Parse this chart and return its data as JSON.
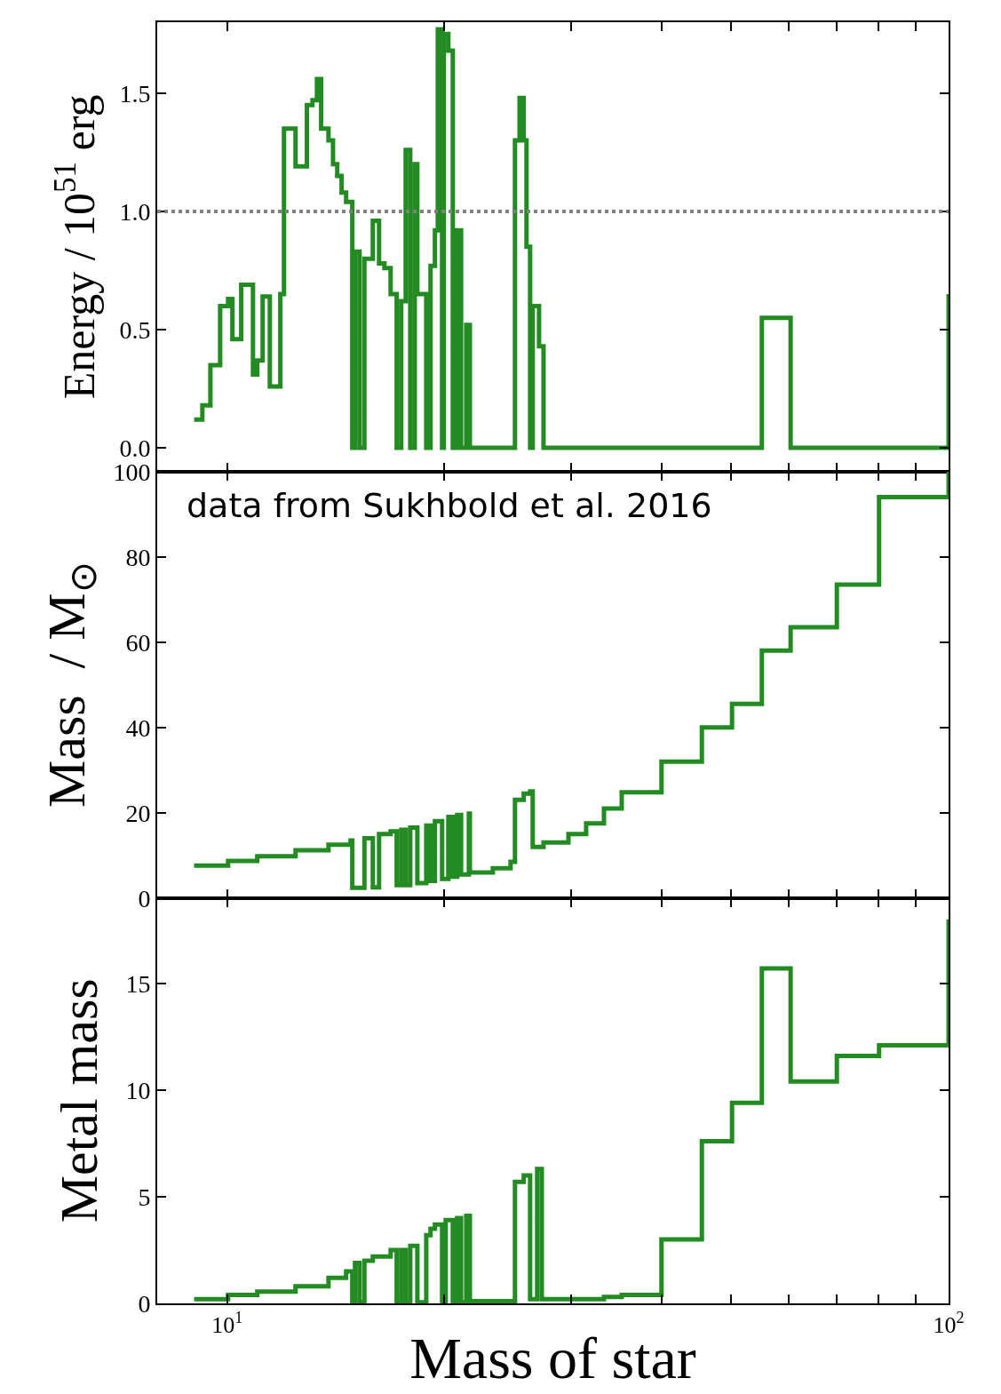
{
  "chart_data": [
    {
      "type": "step",
      "ylabel": "Energy / 10$^{51}$ erg",
      "log": "x",
      "xlim": [
        8,
        100
      ],
      "xticks": [
        {
          "value": 10,
          "label": null
        },
        {
          "value": 20,
          "label": null
        },
        {
          "value": 30,
          "label": null
        },
        {
          "value": 40,
          "label": null
        },
        {
          "value": 50,
          "label": null
        },
        {
          "value": 60,
          "label": null
        },
        {
          "value": 70,
          "label": null
        },
        {
          "value": 80,
          "label": null
        },
        {
          "value": 90,
          "label": null
        },
        {
          "value": 100,
          "label": null
        }
      ],
      "ylim": [
        -0.1,
        1.8
      ],
      "yticks": [
        {
          "value": 0,
          "label": "0.0"
        },
        0.5,
        {
          "value": 1,
          "label": "1.0"
        },
        1.5
      ],
      "tick_labels": "y",
      "ref_lines": [
        {
          "axis": "y",
          "value": 1,
          "color": "#808080",
          "line_style": "dotted"
        }
      ],
      "series": [
        {
          "color": "#228b22",
          "x": [
            9.0,
            9.24,
            9.48,
            9.78,
            10.03,
            10.17,
            10.46,
            10.86,
            11.01,
            11.2,
            11.46,
            11.85,
            11.99,
            12.44,
            12.9,
            13.13,
            13.32,
            13.5,
            13.82,
            14.02,
            14.21,
            14.41,
            14.62,
            14.91,
            15.04,
            15.26,
            15.5,
            15.92,
            16.24,
            16.52,
            16.85,
            17.18,
            17.43,
            17.68,
            17.94,
            18.2,
            18.35,
            18.88,
            19.14,
            19.41,
            19.59,
            19.86,
            19.97,
            20.26,
            20.55,
            20.84,
            21.1,
            21.45,
            21.7,
            25.06,
            25.43,
            25.77,
            26.0,
            26.3,
            26.52,
            27.06,
            27.45,
            55.1,
            60.4,
            100
          ],
          "values": [
            0.12,
            0.18,
            0.35,
            0.6,
            0.63,
            0.46,
            0.69,
            0.31,
            0.37,
            0.64,
            0.26,
            0.65,
            1.35,
            1.19,
            1.45,
            1.47,
            1.56,
            1.35,
            1.3,
            1.2,
            1.15,
            1.08,
            1.04,
            0,
            0.83,
            0,
            0.8,
            0.96,
            0.78,
            0.76,
            0.65,
            0,
            0.62,
            1.26,
            0,
            1.2,
            0.65,
            0,
            0.77,
            0.92,
            1.77,
            0,
            1.75,
            1.68,
            0,
            0.92,
            0,
            0.52,
            0,
            1.3,
            1.48,
            1.3,
            0.85,
            0,
            0.6,
            0.43,
            0,
            0.55,
            0,
            0.65
          ]
        }
      ]
    },
    {
      "type": "step",
      "ylabel": "Mass  / M$_{⊙}$",
      "log": "x",
      "xlim": [
        8,
        100
      ],
      "xticks": [
        {
          "value": 10,
          "label": null
        },
        {
          "value": 20,
          "label": null
        },
        {
          "value": 30,
          "label": null
        },
        {
          "value": 40,
          "label": null
        },
        {
          "value": 50,
          "label": null
        },
        {
          "value": 60,
          "label": null
        },
        {
          "value": 70,
          "label": null
        },
        {
          "value": 80,
          "label": null
        },
        {
          "value": 90,
          "label": null
        },
        {
          "value": 100,
          "label": null
        }
      ],
      "ylim": [
        0,
        100
      ],
      "yticks": [
        0,
        20,
        40,
        60,
        80,
        100
      ],
      "tick_labels": "y",
      "annotations": [
        "data from Sukhbold et al. 2016"
      ],
      "series": [
        {
          "color": "#228b22",
          "x": [
            9.0,
            10.03,
            11.01,
            12.44,
            13.82,
            14.83,
            14.91,
            15.5,
            15.92,
            16.24,
            16.85,
            17.18,
            17.43,
            17.68,
            17.94,
            18.35,
            18.88,
            19.14,
            19.41,
            19.86,
            20.26,
            20.55,
            20.84,
            21.1,
            21.63,
            21.7,
            23.35,
            24.71,
            25.06,
            25.77,
            26.3,
            26.52,
            27.45,
            29.72,
            31.45,
            33.29,
            35.23,
            40.0,
            45.5,
            50.1,
            55.1,
            60.4,
            70.0,
            80.1,
            100
          ],
          "values": [
            7.6,
            8.7,
            9.8,
            11.2,
            12.5,
            13.5,
            2.4,
            14.0,
            2.5,
            15.0,
            15.6,
            3.0,
            16.0,
            3.0,
            16.5,
            3.5,
            17.0,
            4.0,
            18.0,
            4.5,
            19.0,
            5.0,
            19.5,
            5.5,
            19.8,
            6.0,
            7.0,
            8.5,
            23.0,
            24.5,
            25.0,
            12.0,
            13.0,
            15.0,
            17.5,
            21.0,
            24.8,
            32.0,
            40.0,
            45.5,
            58.0,
            63.5,
            73.5,
            94.0,
            100
          ]
        }
      ]
    },
    {
      "type": "step",
      "ylabel": "Metal mass",
      "xlabel": "Mass of star",
      "log": "x",
      "xlim": [
        8,
        100
      ],
      "xticks": [
        {
          "value": 10,
          "label": "10$^{1}$"
        },
        {
          "value": 20,
          "label": null
        },
        {
          "value": 30,
          "label": null
        },
        {
          "value": 40,
          "label": null
        },
        {
          "value": 50,
          "label": null
        },
        {
          "value": 60,
          "label": null
        },
        {
          "value": 70,
          "label": null
        },
        {
          "value": 80,
          "label": null
        },
        {
          "value": 90,
          "label": null
        },
        {
          "value": 100,
          "label": "10$^{2}$"
        }
      ],
      "ylim": [
        0,
        19
      ],
      "yticks": [
        0,
        5,
        10,
        15
      ],
      "series": [
        {
          "color": "#228b22",
          "x": [
            9.0,
            10.03,
            11.01,
            12.44,
            13.82,
            14.62,
            14.91,
            15.04,
            15.26,
            15.5,
            15.92,
            16.85,
            17.18,
            17.43,
            17.68,
            17.94,
            18.35,
            18.88,
            19.14,
            19.41,
            19.86,
            20.09,
            20.55,
            20.84,
            21.1,
            21.45,
            21.7,
            25.06,
            25.77,
            26.3,
            26.9,
            27.3,
            33.29,
            35.23,
            40.0,
            45.5,
            50.1,
            55.1,
            60.4,
            70.0,
            80.1,
            100
          ],
          "values": [
            0.2,
            0.4,
            0.55,
            0.8,
            1.2,
            1.5,
            0.05,
            1.9,
            0.05,
            2.0,
            2.2,
            2.5,
            0.05,
            2.5,
            0.05,
            2.7,
            0.05,
            3.2,
            3.5,
            3.7,
            0.05,
            3.9,
            0.05,
            4.0,
            0.05,
            4.1,
            0.1,
            5.7,
            6.0,
            0.2,
            6.3,
            0.2,
            0.3,
            0.4,
            3.0,
            7.6,
            9.4,
            15.7,
            10.4,
            11.6,
            12.1,
            18
          ]
        }
      ]
    }
  ]
}
